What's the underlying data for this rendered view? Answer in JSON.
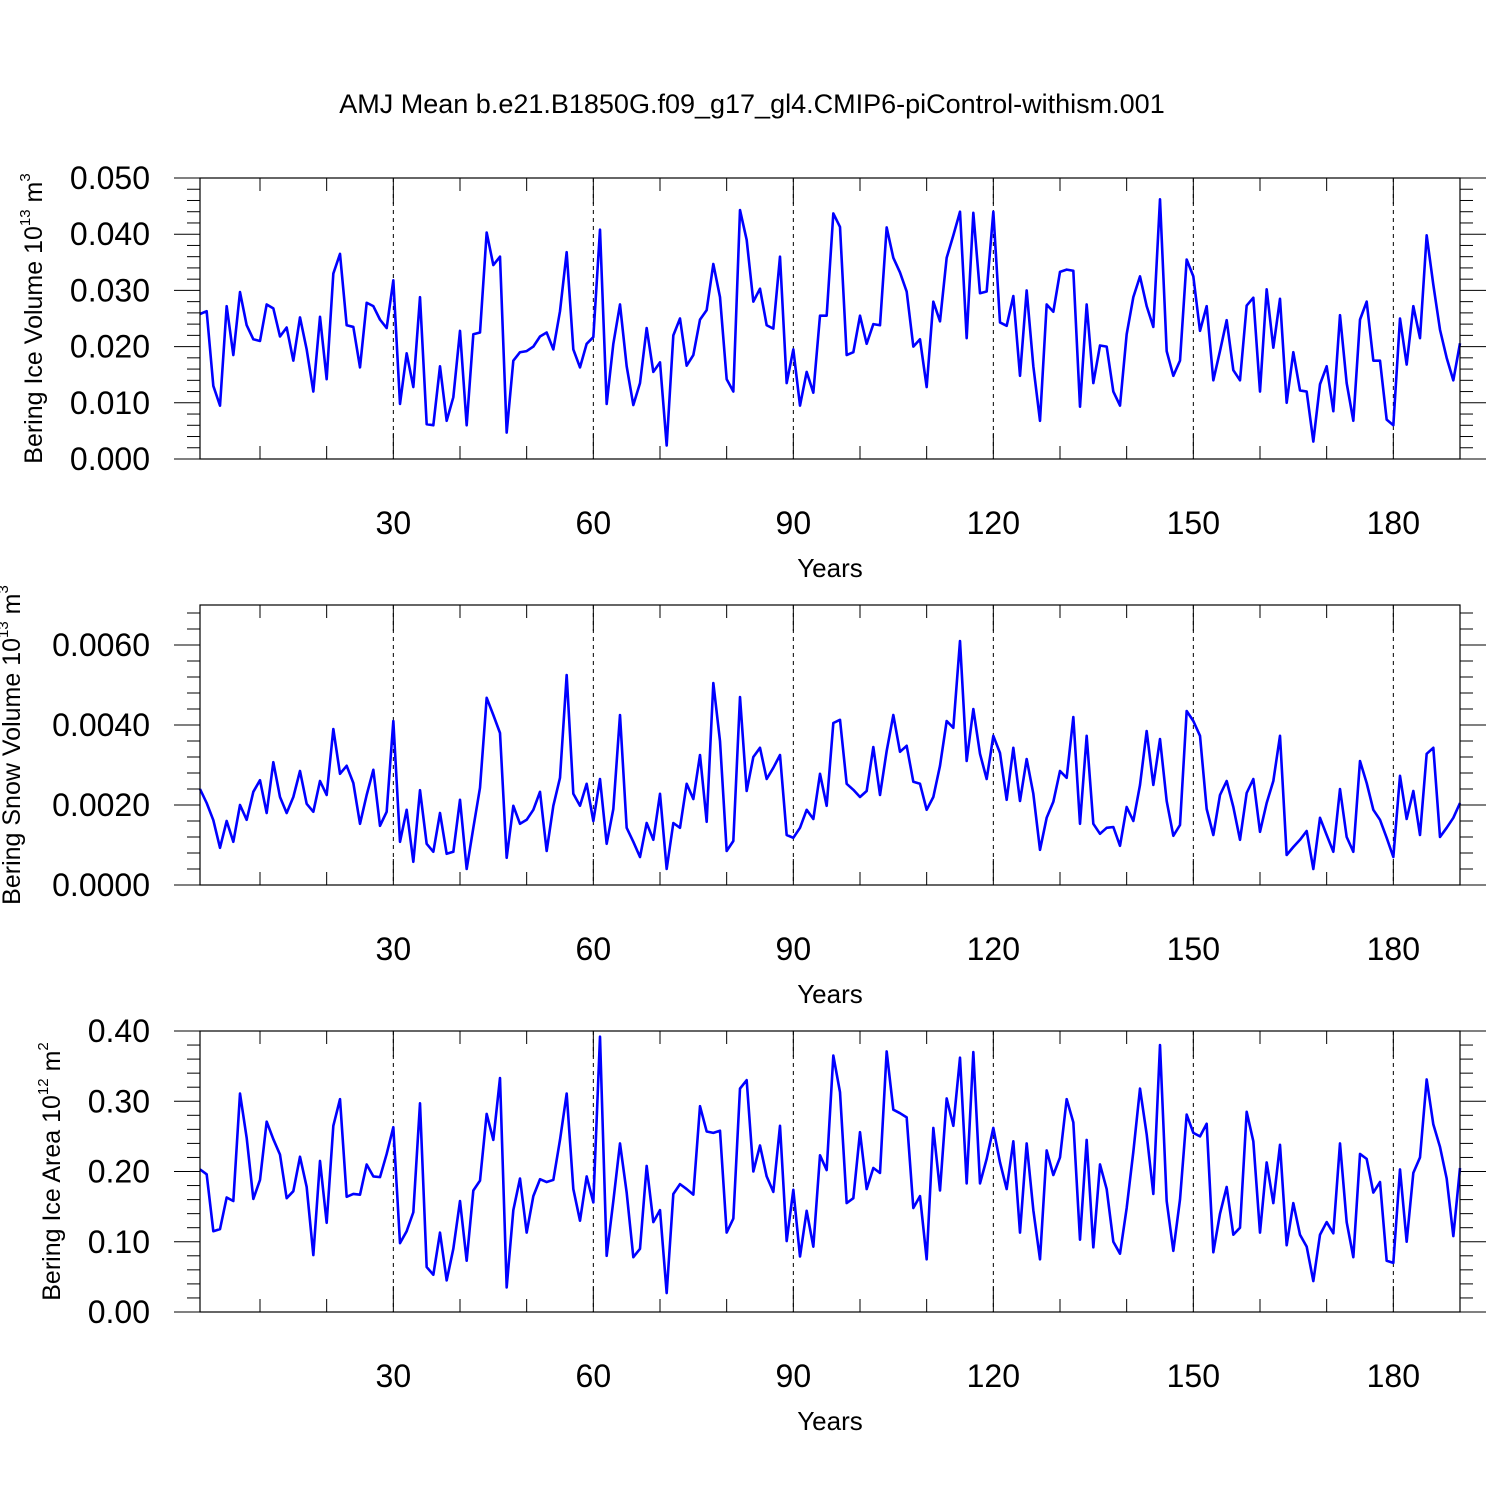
{
  "title": "AMJ Mean b.e21.B1850G.f09_g17_gl4.CMIP6-piControl-withism.001",
  "chart_data": [
    {
      "type": "line",
      "id": "ice-volume",
      "ylabel_main": "Bering Ice Volume 10",
      "ylabel_exp": "13",
      "ylabel_unit": " m",
      "ylabel_unit_exp": "3",
      "xlabel": "Years",
      "xlim": [
        1,
        190
      ],
      "ylim": [
        0,
        0.05
      ],
      "xticks": [
        30,
        60,
        90,
        120,
        150,
        180
      ],
      "xtick_labels": [
        "30",
        "60",
        "90",
        "120",
        "150",
        "180"
      ],
      "yticks": [
        0,
        0.01,
        0.02,
        0.03,
        0.04,
        0.05
      ],
      "ytick_labels": [
        "0.000",
        "0.010",
        "0.020",
        "0.030",
        "0.040",
        "0.050"
      ],
      "x_start": 1,
      "values": [
        0.0258,
        0.0263,
        0.013,
        0.0095,
        0.0272,
        0.0185,
        0.0297,
        0.0238,
        0.0213,
        0.021,
        0.0275,
        0.0268,
        0.0218,
        0.0234,
        0.0175,
        0.0252,
        0.0195,
        0.012,
        0.0253,
        0.0142,
        0.033,
        0.0365,
        0.0238,
        0.0235,
        0.0163,
        0.0278,
        0.0272,
        0.0248,
        0.0233,
        0.0318,
        0.0098,
        0.0188,
        0.0128,
        0.0288,
        0.0062,
        0.006,
        0.0165,
        0.0068,
        0.011,
        0.0228,
        0.006,
        0.0222,
        0.0225,
        0.0403,
        0.0345,
        0.036,
        0.0047,
        0.0175,
        0.019,
        0.0192,
        0.02,
        0.0218,
        0.0225,
        0.0195,
        0.0263,
        0.0368,
        0.0195,
        0.0163,
        0.0205,
        0.0217,
        0.0408,
        0.0098,
        0.0205,
        0.0275,
        0.0165,
        0.0096,
        0.0135,
        0.0233,
        0.0155,
        0.0172,
        0.0024,
        0.022,
        0.025,
        0.0166,
        0.0185,
        0.0248,
        0.0265,
        0.0347,
        0.0288,
        0.0142,
        0.012,
        0.0443,
        0.039,
        0.028,
        0.0303,
        0.0238,
        0.0232,
        0.036,
        0.0135,
        0.0195,
        0.0095,
        0.0155,
        0.0118,
        0.0255,
        0.0255,
        0.0437,
        0.0413,
        0.0185,
        0.019,
        0.0255,
        0.0205,
        0.024,
        0.0238,
        0.0412,
        0.0358,
        0.0332,
        0.0298,
        0.02,
        0.0213,
        0.0128,
        0.028,
        0.0245,
        0.0358,
        0.0398,
        0.044,
        0.0215,
        0.0438,
        0.0295,
        0.0298,
        0.044,
        0.0243,
        0.0237,
        0.029,
        0.0148,
        0.03,
        0.0165,
        0.0068,
        0.0275,
        0.0262,
        0.0333,
        0.0337,
        0.0335,
        0.0093,
        0.0275,
        0.0135,
        0.0202,
        0.02,
        0.012,
        0.0095,
        0.0222,
        0.0288,
        0.0325,
        0.0272,
        0.0235,
        0.0462,
        0.0192,
        0.0148,
        0.0175,
        0.0355,
        0.0325,
        0.0228,
        0.0272,
        0.014,
        0.0192,
        0.0247,
        0.0158,
        0.014,
        0.0273,
        0.0287,
        0.012,
        0.0302,
        0.0198,
        0.0285,
        0.01,
        0.019,
        0.0122,
        0.012,
        0.0031,
        0.0133,
        0.0165,
        0.0085,
        0.0256,
        0.0135,
        0.0068,
        0.0248,
        0.028,
        0.0175,
        0.0175,
        0.007,
        0.006,
        0.025,
        0.0168,
        0.0272,
        0.0215,
        0.0398,
        0.031,
        0.023,
        0.018,
        0.014,
        0.0206
      ]
    },
    {
      "type": "line",
      "id": "snow-volume",
      "ylabel_main": "Bering Snow Volume 10",
      "ylabel_exp": "13",
      "ylabel_unit": " m",
      "ylabel_unit_exp": "3",
      "xlabel": "Years",
      "xlim": [
        1,
        190
      ],
      "ylim": [
        0,
        0.007
      ],
      "xticks": [
        30,
        60,
        90,
        120,
        150,
        180
      ],
      "xtick_labels": [
        "30",
        "60",
        "90",
        "120",
        "150",
        "180"
      ],
      "yticks": [
        0,
        0.002,
        0.004,
        0.006
      ],
      "ytick_labels": [
        "0.0000",
        "0.0020",
        "0.0040",
        "0.0060"
      ],
      "x_start": 1,
      "values": [
        0.0024,
        0.00205,
        0.00162,
        0.00093,
        0.0016,
        0.00108,
        0.002,
        0.00163,
        0.00233,
        0.00262,
        0.0018,
        0.00307,
        0.0022,
        0.0018,
        0.0022,
        0.00285,
        0.00203,
        0.00183,
        0.0026,
        0.00225,
        0.0039,
        0.00278,
        0.00298,
        0.00255,
        0.00153,
        0.00225,
        0.00288,
        0.00148,
        0.00183,
        0.0041,
        0.00108,
        0.00188,
        0.00058,
        0.00237,
        0.00103,
        0.00083,
        0.0018,
        0.00078,
        0.00083,
        0.00213,
        0.0004,
        0.00143,
        0.00243,
        0.00468,
        0.00425,
        0.0038,
        0.00068,
        0.00198,
        0.00153,
        0.00163,
        0.00188,
        0.00233,
        0.00085,
        0.00198,
        0.00268,
        0.00525,
        0.00228,
        0.00198,
        0.00253,
        0.0016,
        0.00265,
        0.00103,
        0.0019,
        0.00425,
        0.00143,
        0.00108,
        0.0007,
        0.00155,
        0.00113,
        0.00228,
        0.0004,
        0.00155,
        0.00143,
        0.00253,
        0.00215,
        0.00325,
        0.00158,
        0.00505,
        0.0036,
        0.00085,
        0.0011,
        0.0047,
        0.00235,
        0.0032,
        0.00343,
        0.00265,
        0.00293,
        0.00325,
        0.00125,
        0.00118,
        0.00143,
        0.00188,
        0.00165,
        0.00278,
        0.00198,
        0.00405,
        0.00413,
        0.00253,
        0.00238,
        0.0022,
        0.00235,
        0.00345,
        0.00225,
        0.00335,
        0.00425,
        0.00333,
        0.00348,
        0.00258,
        0.00253,
        0.00188,
        0.0022,
        0.00298,
        0.0041,
        0.00393,
        0.0061,
        0.0031,
        0.0044,
        0.00328,
        0.00265,
        0.00373,
        0.0033,
        0.00213,
        0.00343,
        0.0021,
        0.00315,
        0.00228,
        0.00088,
        0.00168,
        0.00208,
        0.00285,
        0.00268,
        0.0042,
        0.00153,
        0.00373,
        0.00153,
        0.00128,
        0.00143,
        0.00145,
        0.00098,
        0.00195,
        0.0016,
        0.0025,
        0.00385,
        0.0025,
        0.00365,
        0.0021,
        0.00123,
        0.0015,
        0.00435,
        0.0041,
        0.00373,
        0.0019,
        0.00125,
        0.00225,
        0.0026,
        0.00195,
        0.00113,
        0.0023,
        0.00265,
        0.00133,
        0.00205,
        0.0026,
        0.00373,
        0.00075,
        0.00095,
        0.00113,
        0.00135,
        0.0004,
        0.00168,
        0.00125,
        0.00083,
        0.0024,
        0.0012,
        0.00083,
        0.0031,
        0.00255,
        0.00188,
        0.00163,
        0.00118,
        0.0007,
        0.00273,
        0.00165,
        0.00235,
        0.00125,
        0.00328,
        0.00343,
        0.0012,
        0.00143,
        0.00168,
        0.00205
      ]
    },
    {
      "type": "line",
      "id": "ice-area",
      "ylabel_main": "Bering Ice Area 10",
      "ylabel_exp": "12",
      "ylabel_unit": " m",
      "ylabel_unit_exp": "2",
      "xlabel": "Years",
      "xlim": [
        1,
        190
      ],
      "ylim": [
        0,
        0.4
      ],
      "xticks": [
        30,
        60,
        90,
        120,
        150,
        180
      ],
      "xtick_labels": [
        "30",
        "60",
        "90",
        "120",
        "150",
        "180"
      ],
      "yticks": [
        0,
        0.1,
        0.2,
        0.3,
        0.4
      ],
      "ytick_labels": [
        "0.00",
        "0.10",
        "0.20",
        "0.30",
        "0.40"
      ],
      "x_start": 1,
      "values": [
        0.203,
        0.196,
        0.115,
        0.118,
        0.163,
        0.158,
        0.311,
        0.248,
        0.161,
        0.188,
        0.271,
        0.246,
        0.224,
        0.162,
        0.172,
        0.221,
        0.178,
        0.081,
        0.215,
        0.127,
        0.265,
        0.303,
        0.164,
        0.168,
        0.167,
        0.21,
        0.193,
        0.192,
        0.225,
        0.263,
        0.098,
        0.115,
        0.142,
        0.297,
        0.064,
        0.053,
        0.113,
        0.045,
        0.09,
        0.158,
        0.073,
        0.173,
        0.187,
        0.282,
        0.245,
        0.333,
        0.035,
        0.145,
        0.19,
        0.113,
        0.165,
        0.189,
        0.185,
        0.188,
        0.245,
        0.311,
        0.175,
        0.13,
        0.193,
        0.156,
        0.392,
        0.08,
        0.158,
        0.24,
        0.17,
        0.078,
        0.09,
        0.208,
        0.128,
        0.145,
        0.027,
        0.168,
        0.182,
        0.175,
        0.167,
        0.293,
        0.257,
        0.255,
        0.258,
        0.113,
        0.133,
        0.318,
        0.33,
        0.2,
        0.237,
        0.193,
        0.171,
        0.265,
        0.101,
        0.174,
        0.079,
        0.144,
        0.093,
        0.223,
        0.202,
        0.365,
        0.313,
        0.155,
        0.162,
        0.256,
        0.175,
        0.205,
        0.198,
        0.371,
        0.288,
        0.283,
        0.277,
        0.148,
        0.165,
        0.075,
        0.262,
        0.173,
        0.304,
        0.265,
        0.362,
        0.183,
        0.37,
        0.183,
        0.218,
        0.262,
        0.213,
        0.175,
        0.243,
        0.113,
        0.24,
        0.145,
        0.075,
        0.23,
        0.195,
        0.22,
        0.303,
        0.27,
        0.103,
        0.245,
        0.092,
        0.21,
        0.175,
        0.1,
        0.083,
        0.148,
        0.228,
        0.318,
        0.253,
        0.168,
        0.38,
        0.158,
        0.087,
        0.16,
        0.281,
        0.255,
        0.25,
        0.268,
        0.085,
        0.14,
        0.178,
        0.11,
        0.12,
        0.285,
        0.243,
        0.113,
        0.213,
        0.155,
        0.238,
        0.095,
        0.155,
        0.11,
        0.093,
        0.044,
        0.11,
        0.128,
        0.112,
        0.24,
        0.128,
        0.078,
        0.225,
        0.218,
        0.17,
        0.185,
        0.073,
        0.07,
        0.203,
        0.1,
        0.198,
        0.22,
        0.331,
        0.267,
        0.235,
        0.19,
        0.108,
        0.205
      ]
    }
  ]
}
